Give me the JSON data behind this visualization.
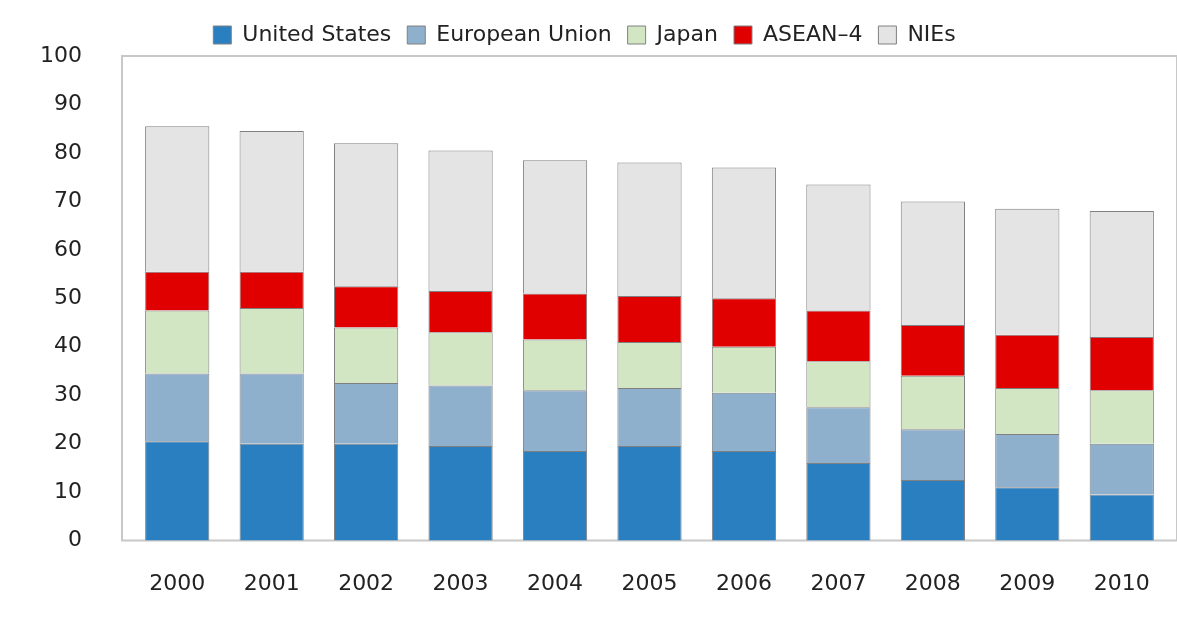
{
  "chart_data": {
    "type": "bar",
    "stacked": true,
    "categories": [
      "2000",
      "2001",
      "2002",
      "2003",
      "2004",
      "2005",
      "2006",
      "2007",
      "2008",
      "2009",
      "2010"
    ],
    "series": [
      {
        "name": "United States",
        "color": "#2a7fc1",
        "values": [
          20.5,
          20,
          20,
          19.5,
          18.5,
          19.5,
          18.5,
          16,
          12.5,
          11,
          9.5
        ]
      },
      {
        "name": "European Union",
        "color": "#8fb0cc",
        "values": [
          14,
          14.5,
          12.5,
          12.5,
          12.5,
          12,
          12,
          11.5,
          10.5,
          11,
          10.5
        ]
      },
      {
        "name": "Japan",
        "color": "#d3e6c4",
        "values": [
          13,
          13.5,
          11.5,
          11,
          10.5,
          9.5,
          9.5,
          9.5,
          11,
          9.5,
          11
        ]
      },
      {
        "name": "ASEAN–4",
        "color": "#e00000",
        "values": [
          8,
          7.5,
          8.5,
          8.5,
          9.5,
          9.5,
          10,
          10.5,
          10.5,
          11,
          11
        ]
      },
      {
        "name": "NIEs",
        "color": "#e4e4e4",
        "values": [
          30,
          29,
          29.5,
          29,
          27.5,
          27.5,
          27,
          26,
          25.5,
          26,
          26
        ]
      }
    ],
    "ylim": [
      0,
      100
    ],
    "yticks": [
      0,
      10,
      20,
      30,
      40,
      50,
      60,
      70,
      80,
      90,
      100
    ],
    "grid": false,
    "legend": "top"
  }
}
